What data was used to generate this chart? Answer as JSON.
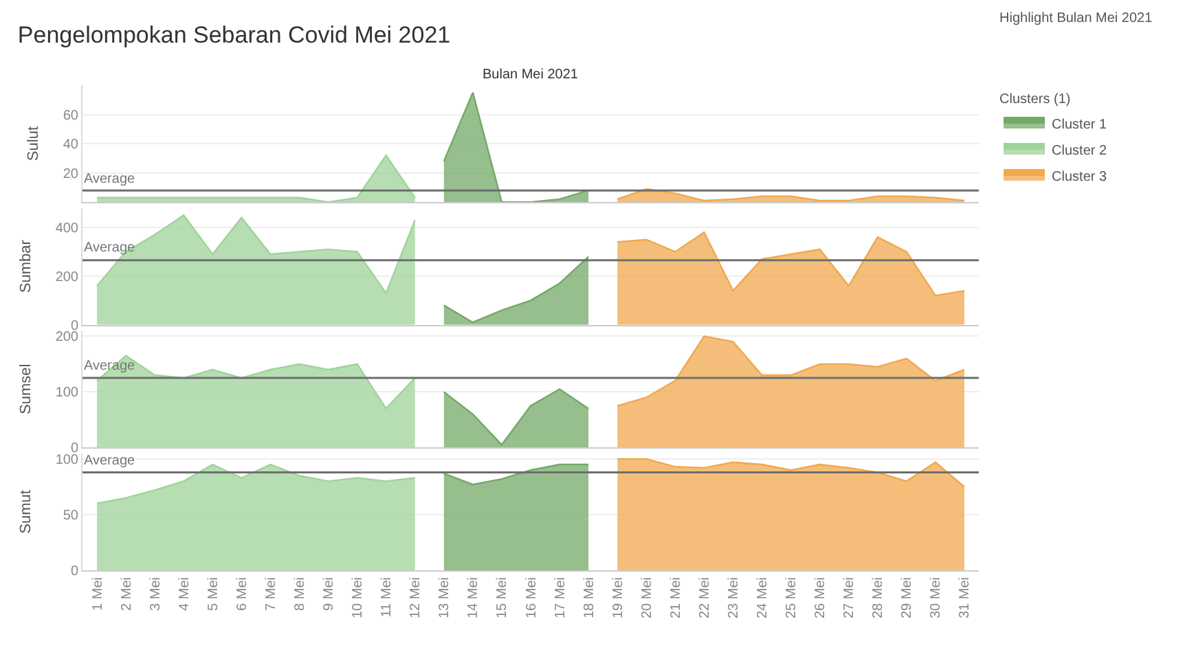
{
  "chart_data": [
    {
      "type": "area",
      "title": "Pengelompokan Sebaran Covid Mei 2021",
      "subtitle": "Bulan Mei 2021",
      "ylabel": "Sulut",
      "legend_title": "Clusters (1)",
      "legend": "right",
      "grid": "y",
      "tick_labels": "y",
      "annotations": [
        "Highlight Bulan Mei 2021"
      ],
      "ylim": [
        0,
        80
      ],
      "yticks": [
        20,
        40,
        60
      ],
      "ref_lines": [
        {
          "axis": "y",
          "value": 8,
          "label": "Average",
          "color": "#6e6e6e"
        }
      ],
      "series": [
        {
          "name": "Cluster 1",
          "color": "#74a867",
          "values": [
            null,
            null,
            null,
            null,
            null,
            null,
            null,
            null,
            null,
            null,
            null,
            null,
            28,
            75,
            0,
            0,
            2,
            8,
            null,
            null,
            null,
            null,
            null,
            null,
            null,
            null,
            null,
            null,
            null,
            null,
            null
          ]
        },
        {
          "name": "Cluster 2",
          "color": "#9fd39a",
          "values": [
            3,
            3,
            3,
            3,
            3,
            3,
            3,
            3,
            0,
            3,
            32,
            3,
            null,
            null,
            null,
            null,
            null,
            null,
            null,
            null,
            null,
            null,
            null,
            null,
            null,
            null,
            null,
            null,
            null,
            null,
            null
          ]
        },
        {
          "name": "Cluster 3",
          "color": "#f0a84e",
          "values": [
            null,
            null,
            null,
            null,
            null,
            null,
            null,
            null,
            null,
            null,
            null,
            null,
            null,
            null,
            null,
            null,
            null,
            null,
            2,
            9,
            6,
            1,
            2,
            4,
            4,
            1,
            1,
            4,
            4,
            3,
            1
          ]
        }
      ]
    },
    {
      "type": "area",
      "ylabel": "Sumbar",
      "grid": "y",
      "tick_labels": "y",
      "ylim": [
        0,
        480
      ],
      "yticks": [
        0,
        200,
        400
      ],
      "ref_lines": [
        {
          "axis": "y",
          "value": 265,
          "label": "Average",
          "color": "#6e6e6e"
        }
      ],
      "series": [
        {
          "color": "#74a867",
          "values": [
            null,
            null,
            null,
            null,
            null,
            null,
            null,
            null,
            null,
            null,
            null,
            null,
            80,
            10,
            60,
            100,
            170,
            280,
            null,
            null,
            null,
            null,
            null,
            null,
            null,
            null,
            null,
            null,
            null,
            null,
            null
          ]
        },
        {
          "color": "#9fd39a",
          "values": [
            160,
            300,
            370,
            450,
            290,
            440,
            290,
            300,
            310,
            300,
            130,
            430,
            null,
            null,
            null,
            null,
            null,
            null,
            null,
            null,
            null,
            null,
            null,
            null,
            null,
            null,
            null,
            null,
            null,
            null,
            null
          ]
        },
        {
          "color": "#f0a84e",
          "values": [
            null,
            null,
            null,
            null,
            null,
            null,
            null,
            null,
            null,
            null,
            null,
            null,
            null,
            null,
            null,
            null,
            null,
            null,
            340,
            350,
            300,
            380,
            140,
            270,
            290,
            310,
            160,
            360,
            300,
            120,
            140
          ]
        }
      ]
    },
    {
      "type": "area",
      "ylabel": "Sumsel",
      "grid": "y",
      "tick_labels": "y",
      "ylim": [
        0,
        210
      ],
      "yticks": [
        0,
        100,
        200
      ],
      "ref_lines": [
        {
          "axis": "y",
          "value": 125,
          "label": "Average",
          "color": "#6e6e6e"
        }
      ],
      "series": [
        {
          "color": "#74a867",
          "values": [
            null,
            null,
            null,
            null,
            null,
            null,
            null,
            null,
            null,
            null,
            null,
            null,
            100,
            60,
            5,
            75,
            105,
            70,
            null,
            null,
            null,
            null,
            null,
            null,
            null,
            null,
            null,
            null,
            null,
            null,
            null
          ]
        },
        {
          "color": "#9fd39a",
          "values": [
            120,
            165,
            130,
            125,
            140,
            125,
            140,
            150,
            140,
            150,
            70,
            125,
            null,
            null,
            null,
            null,
            null,
            null,
            null,
            null,
            null,
            null,
            null,
            null,
            null,
            null,
            null,
            null,
            null,
            null,
            null
          ]
        },
        {
          "color": "#f0a84e",
          "values": [
            null,
            null,
            null,
            null,
            null,
            null,
            null,
            null,
            null,
            null,
            null,
            null,
            null,
            null,
            null,
            null,
            null,
            null,
            75,
            90,
            120,
            200,
            190,
            130,
            130,
            150,
            150,
            145,
            160,
            120,
            140
          ]
        }
      ]
    },
    {
      "type": "area",
      "ylabel": "Sumut",
      "grid": "y",
      "categories": [
        "1 Mei",
        "2 Mei",
        "3 Mei",
        "4 Mei",
        "5 Mei",
        "6 Mei",
        "7 Mei",
        "8 Mei",
        "9 Mei",
        "10 Mei",
        "11 Mei",
        "12 Mei",
        "13 Mei",
        "14 Mei",
        "15 Mei",
        "16 Mei",
        "17 Mei",
        "18 Mei",
        "19 Mei",
        "20 Mei",
        "21 Mei",
        "22 Mei",
        "23 Mei",
        "24 Mei",
        "25 Mei",
        "26 Mei",
        "27 Mei",
        "28 Mei",
        "29 Mei",
        "30 Mei",
        "31 Mei"
      ],
      "ylim": [
        0,
        105
      ],
      "yticks": [
        0,
        50,
        100
      ],
      "ref_lines": [
        {
          "axis": "y",
          "value": 88,
          "label": "Average",
          "color": "#6e6e6e"
        }
      ],
      "series": [
        {
          "color": "#74a867",
          "values": [
            null,
            null,
            null,
            null,
            null,
            null,
            null,
            null,
            null,
            null,
            null,
            null,
            87,
            77,
            82,
            90,
            95,
            95,
            null,
            null,
            null,
            null,
            null,
            null,
            null,
            null,
            null,
            null,
            null,
            null,
            null
          ]
        },
        {
          "color": "#9fd39a",
          "values": [
            60,
            65,
            72,
            80,
            95,
            83,
            95,
            85,
            80,
            83,
            80,
            83,
            null,
            null,
            null,
            null,
            null,
            null,
            null,
            null,
            null,
            null,
            null,
            null,
            null,
            null,
            null,
            null,
            null,
            null,
            null
          ]
        },
        {
          "color": "#f0a84e",
          "values": [
            null,
            null,
            null,
            null,
            null,
            null,
            null,
            null,
            null,
            null,
            null,
            null,
            null,
            null,
            null,
            null,
            null,
            null,
            100,
            100,
            93,
            92,
            97,
            95,
            90,
            95,
            92,
            88,
            80,
            97,
            75
          ]
        }
      ]
    }
  ]
}
